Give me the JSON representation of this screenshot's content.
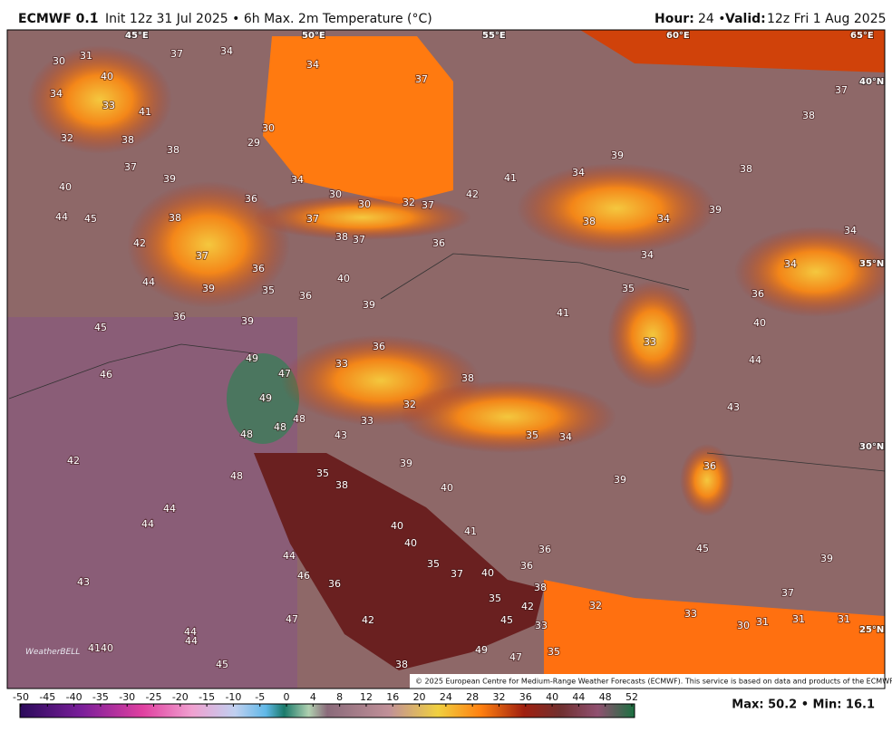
{
  "header": {
    "model": "ECMWF 0.1",
    "degree": "°",
    "title": "Init 12z 31 Jul 2025 • 6h Max. 2m Temperature (°C)",
    "hour_label": "Hour:",
    "hour": "24 •",
    "valid_label": "Valid:",
    "valid": "12z Fri 1 Aug 2025"
  },
  "map": {
    "lon_labels": [
      "45°E",
      "50°E",
      "55°E",
      "60°E",
      "65°E"
    ],
    "lat_labels": [
      "40°N",
      "35°N",
      "30°N",
      "25°N"
    ],
    "temperatures": [
      30,
      31,
      37,
      34,
      34,
      40,
      37,
      37,
      34,
      33,
      41,
      38,
      32,
      38,
      30,
      29,
      38,
      37,
      39,
      34,
      41,
      39,
      34,
      38,
      40,
      30,
      30,
      32,
      37,
      42,
      36,
      37,
      38,
      44,
      45,
      38,
      34,
      39,
      38,
      37,
      36,
      42,
      37,
      34,
      34,
      34,
      36,
      35,
      36,
      40,
      44,
      39,
      35,
      36,
      39,
      41,
      36,
      39,
      40,
      45,
      33,
      36,
      49,
      47,
      33,
      46,
      38,
      44,
      49,
      32,
      43,
      48,
      48,
      48,
      33,
      43,
      35,
      34,
      42,
      39,
      48,
      35,
      38,
      36,
      40,
      39,
      44,
      44,
      40,
      41,
      40,
      45,
      36,
      44,
      35,
      37,
      40,
      36,
      39,
      46,
      43,
      36,
      38,
      35,
      32,
      42,
      37,
      47,
      42,
      45,
      33,
      33,
      30,
      31,
      31,
      31,
      41,
      40,
      44,
      44,
      49,
      47,
      35,
      45,
      38
    ],
    "credit": "© 2025 European Centre for Medium-Range Weather Forecasts (ECMWF). This service is based on data and products of the ECMWF.",
    "logo": "WeatherBELL"
  },
  "colorbar": {
    "ticks": [
      -50,
      -45,
      -40,
      -35,
      -30,
      -25,
      -20,
      -15,
      -10,
      -5,
      0,
      4,
      8,
      12,
      16,
      20,
      24,
      28,
      32,
      36,
      40,
      44,
      48,
      52
    ]
  },
  "footer": {
    "stats": "Max: 50.2 • Min: 16.1"
  }
}
